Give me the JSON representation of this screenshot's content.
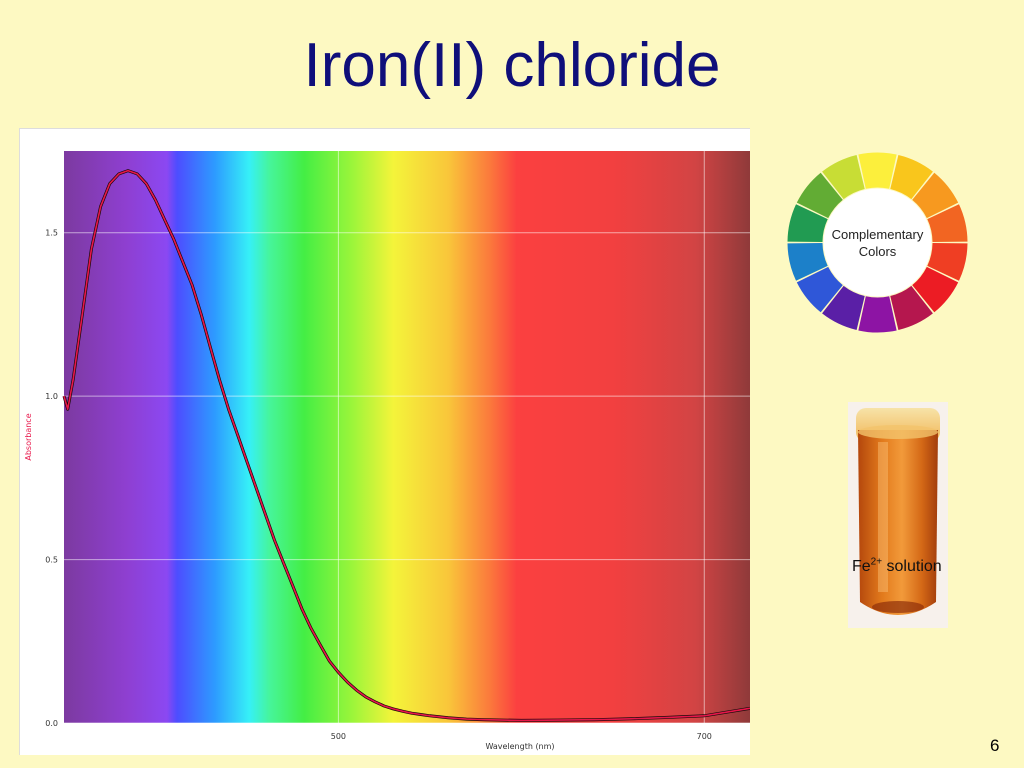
{
  "slide": {
    "title": "Iron(II) chloride",
    "number": "6"
  },
  "color_wheel": {
    "label_line1": "Complementary",
    "label_line2": "Colors",
    "segments": [
      "#fcef3c",
      "#f9c61c",
      "#f7991f",
      "#f26522",
      "#ef3e23",
      "#ec1c24",
      "#b5174e",
      "#8d14a4",
      "#5a1fa6",
      "#2f57d8",
      "#1c80c9",
      "#219b52",
      "#62ac34",
      "#c8dd35"
    ]
  },
  "tube": {
    "caption_base": "Fe",
    "caption_sup": "2+",
    "caption_rest": "solution"
  },
  "chart_data": {
    "type": "line",
    "title": "",
    "xlabel": "Wavelength (nm)",
    "ylabel": "Absorbance",
    "xlim": [
      350,
      725
    ],
    "ylim": [
      0,
      1.75
    ],
    "xticks": [
      500,
      700
    ],
    "yticks": [
      0.0,
      0.5,
      1.0,
      1.5
    ],
    "ytick_labels": [
      "0.0",
      "0.5",
      "1.0",
      "1.5"
    ],
    "grid": true,
    "series": [
      {
        "name": "",
        "color": "#e8164a",
        "x": [
          350,
          352,
          355,
          360,
          365,
          370,
          375,
          380,
          385,
          390,
          395,
          400,
          405,
          410,
          415,
          420,
          425,
          430,
          435,
          440,
          445,
          450,
          455,
          460,
          465,
          470,
          475,
          480,
          485,
          490,
          495,
          500,
          505,
          510,
          515,
          520,
          525,
          530,
          535,
          540,
          545,
          550,
          560,
          570,
          580,
          590,
          600,
          620,
          640,
          660,
          680,
          700,
          725
        ],
        "y": [
          1.0,
          0.96,
          1.05,
          1.25,
          1.45,
          1.58,
          1.65,
          1.68,
          1.69,
          1.68,
          1.65,
          1.6,
          1.54,
          1.48,
          1.41,
          1.34,
          1.25,
          1.15,
          1.05,
          0.96,
          0.88,
          0.8,
          0.72,
          0.64,
          0.56,
          0.49,
          0.42,
          0.35,
          0.29,
          0.24,
          0.19,
          0.155,
          0.125,
          0.1,
          0.08,
          0.065,
          0.052,
          0.043,
          0.036,
          0.03,
          0.026,
          0.022,
          0.016,
          0.012,
          0.01,
          0.009,
          0.008,
          0.009,
          0.01,
          0.013,
          0.017,
          0.022,
          0.045
        ]
      }
    ]
  }
}
